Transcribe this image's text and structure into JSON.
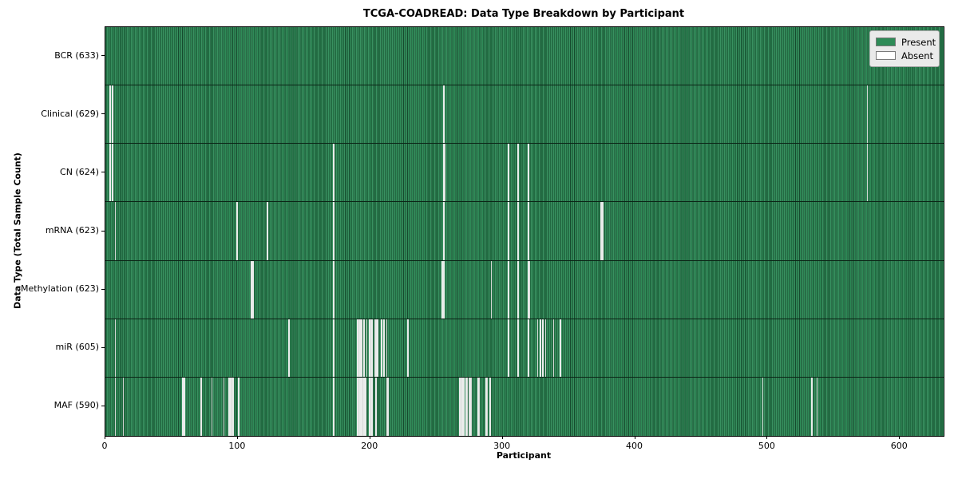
{
  "figure": {
    "title": "TCGA-COADREAD: Data Type Breakdown by Participant",
    "xlabel": "Participant",
    "ylabel": "Data Type (Total Sample Count)"
  },
  "legend": {
    "present_label": "Present",
    "absent_label": "Absent"
  },
  "colors": {
    "present": "#2E8B57",
    "absent": "#ffffff",
    "bar_edge": "#0b2416",
    "plot_border": "#000000",
    "legend_bg": "#eaeaea",
    "legend_border": "#a6a6a6"
  },
  "chart_data": {
    "type": "heatmap",
    "title": "TCGA-COADREAD: Data Type Breakdown by Participant",
    "xlabel": "Participant",
    "ylabel": "Data Type (Total Sample Count)",
    "legend_entries": [
      "Present",
      "Absent"
    ],
    "legend_position": "upper right",
    "grid": false,
    "total_participants": 633,
    "xlim": [
      0,
      633
    ],
    "x_ticks": [
      0,
      100,
      200,
      300,
      400,
      500,
      600
    ],
    "rows": [
      {
        "label": "BCR (633)",
        "name": "BCR",
        "present_count": 633,
        "absent_participants": []
      },
      {
        "label": "Clinical (629)",
        "name": "Clinical",
        "present_count": 629,
        "absent_participants": [
          3,
          5,
          255,
          575
        ]
      },
      {
        "label": "CN (624)",
        "name": "CN",
        "present_count": 624,
        "absent_participants": [
          3,
          5,
          172,
          255,
          256,
          304,
          311,
          319,
          575
        ]
      },
      {
        "label": "mRNA (623)",
        "name": "mRNA",
        "present_count": 623,
        "absent_participants": [
          7,
          99,
          122,
          172,
          255,
          304,
          311,
          319,
          374,
          375
        ]
      },
      {
        "label": "Methylation (623)",
        "name": "Methylation",
        "present_count": 623,
        "absent_participants": [
          110,
          111,
          172,
          254,
          255,
          291,
          304,
          311,
          319,
          320
        ]
      },
      {
        "label": "miR (605)",
        "name": "miR",
        "present_count": 605,
        "absent_participants": [
          7,
          138,
          172,
          190,
          191,
          192,
          193,
          195,
          197,
          199,
          200,
          201,
          203,
          204,
          205,
          208,
          210,
          212,
          228,
          304,
          311,
          319,
          326,
          328,
          330,
          332,
          338,
          343
        ]
      },
      {
        "label": "MAF (590)",
        "name": "MAF",
        "present_count": 590,
        "absent_participants": [
          7,
          13,
          58,
          59,
          72,
          80,
          89,
          93,
          94,
          95,
          96,
          100,
          172,
          190,
          191,
          192,
          193,
          194,
          195,
          196,
          199,
          200,
          201,
          204,
          212,
          213,
          267,
          268,
          269,
          270,
          272,
          273,
          274,
          275,
          276,
          281,
          282,
          287,
          288,
          290,
          496,
          533,
          537
        ]
      }
    ]
  }
}
